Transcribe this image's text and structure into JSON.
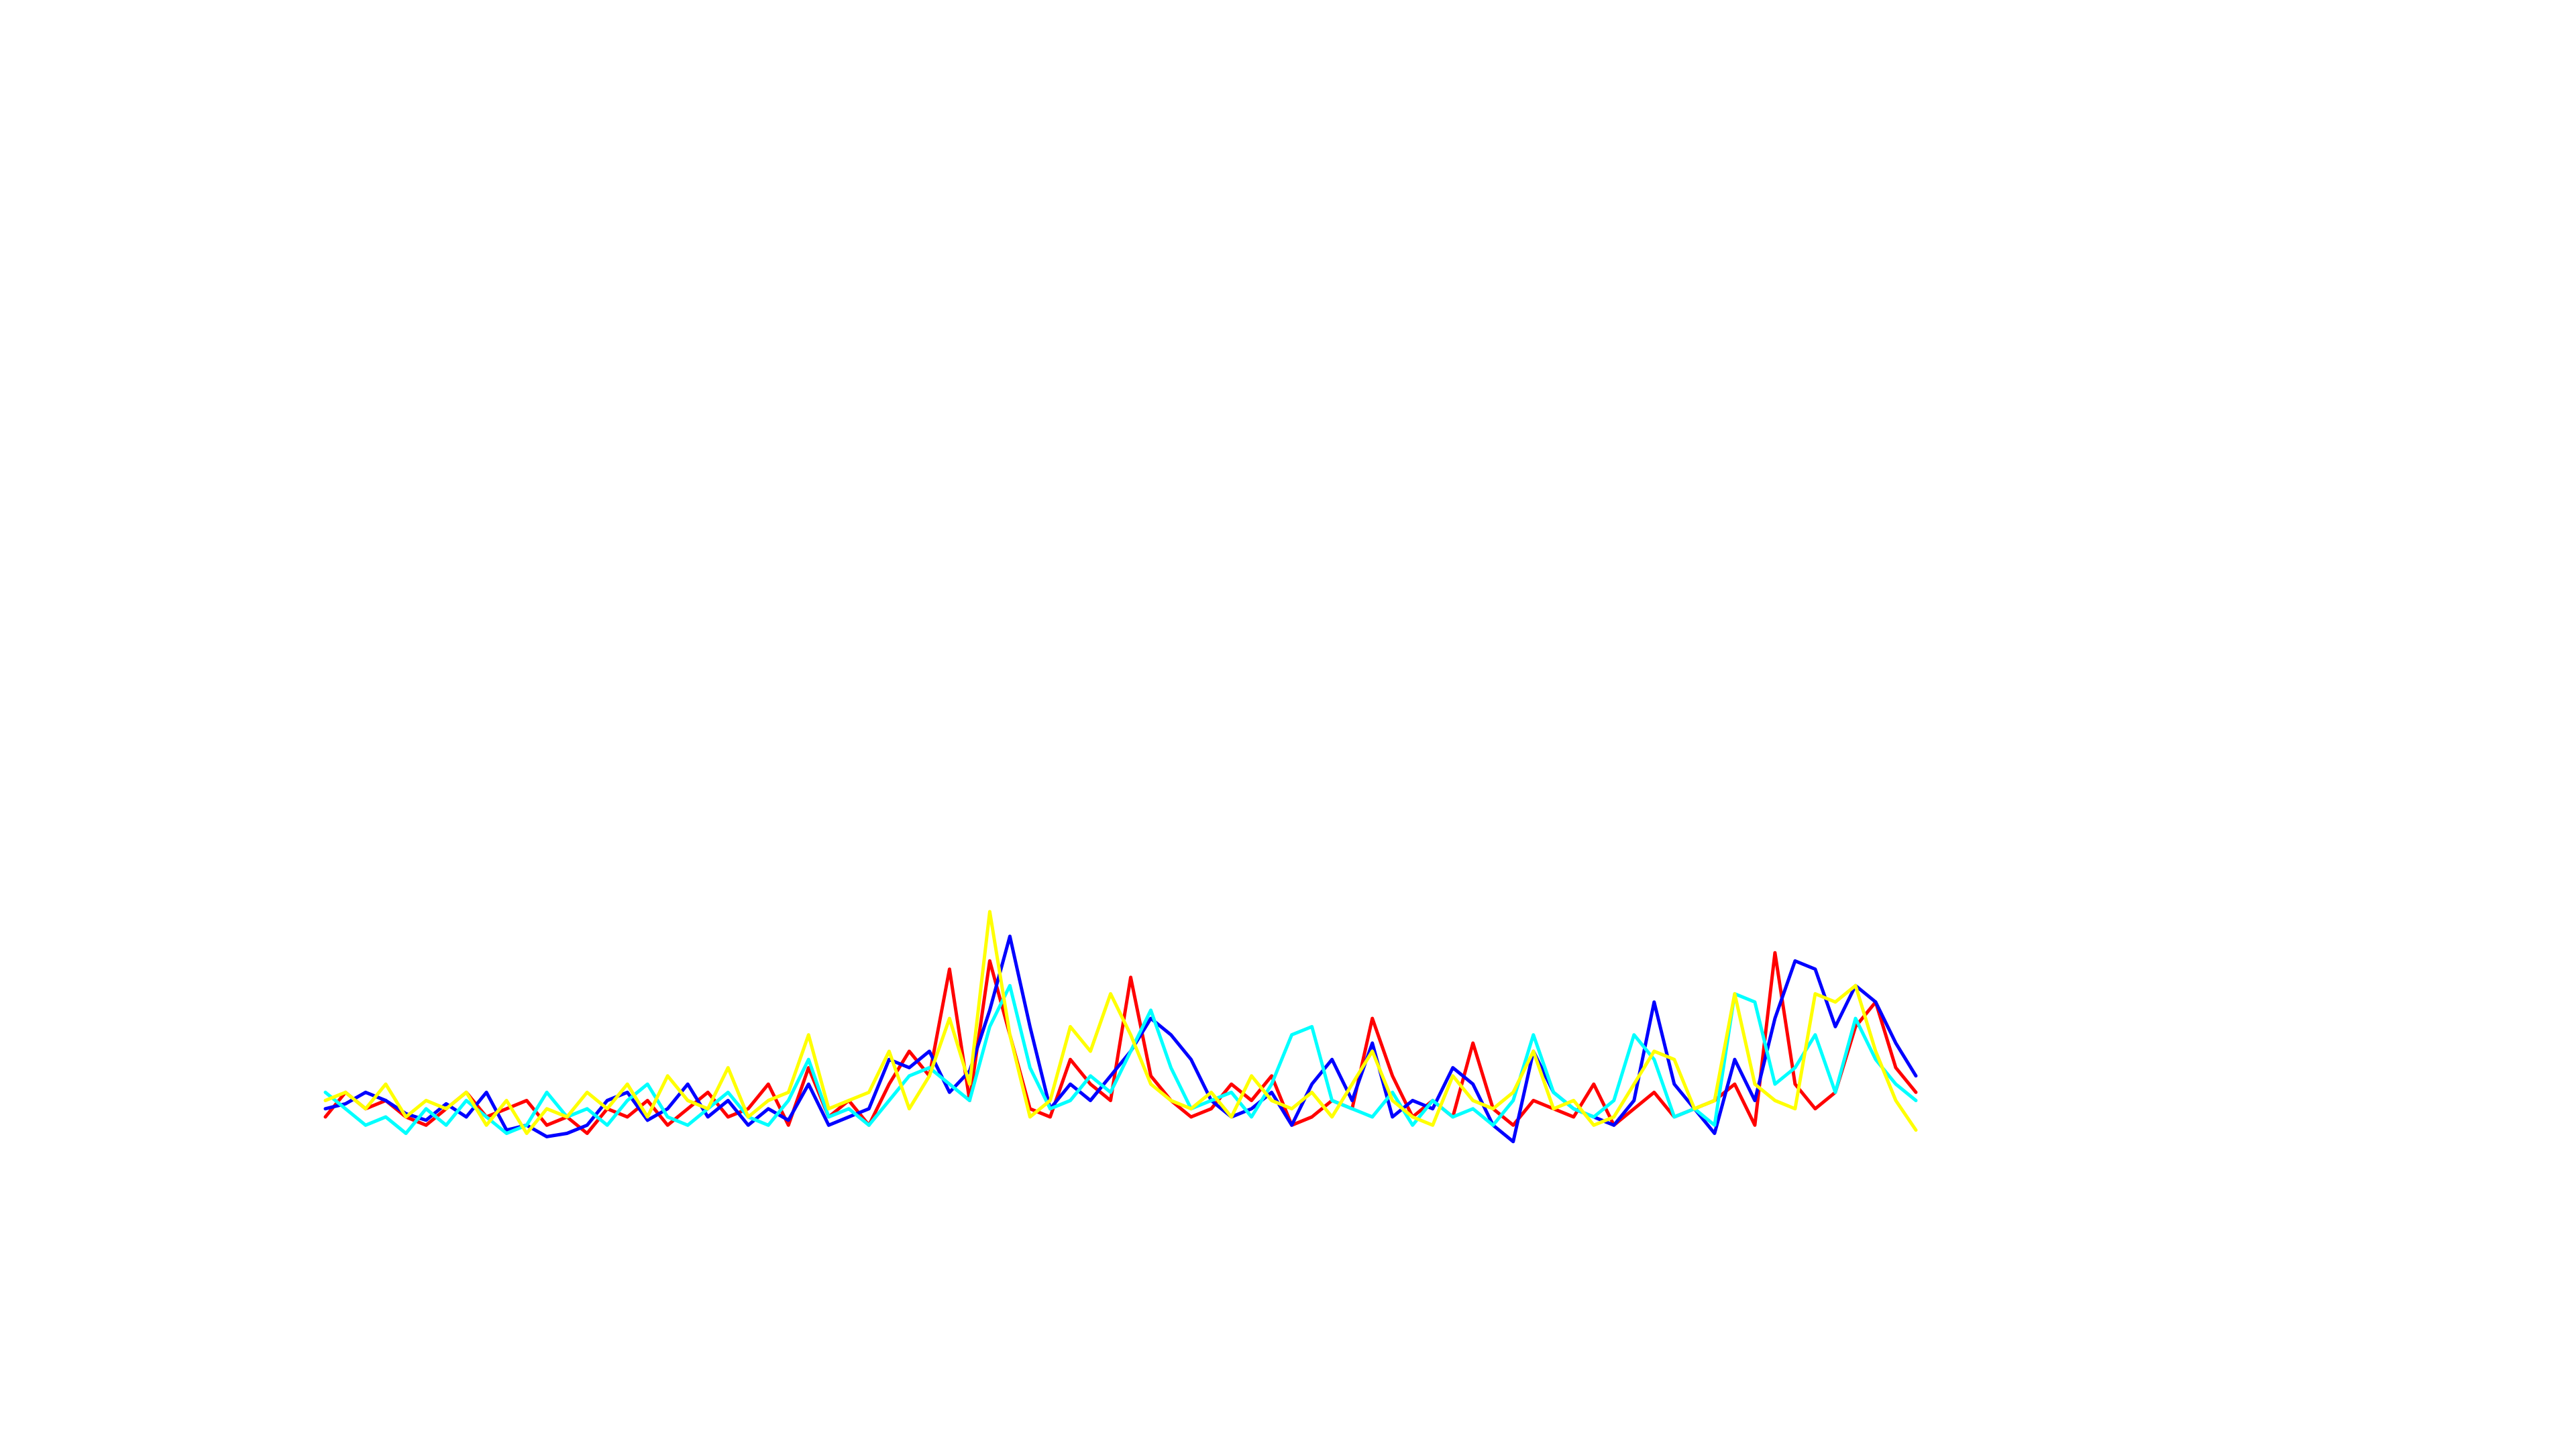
{
  "chart_data": {
    "type": "line",
    "ylim": [
      0,
      600
    ],
    "series": [
      {
        "color": "#ff0000",
        "values": [
          20,
          35,
          25,
          30,
          20,
          15,
          25,
          35,
          20,
          25,
          30,
          15,
          20,
          10,
          25,
          20,
          30,
          15,
          25,
          35,
          20,
          25,
          40,
          15,
          50,
          20,
          30,
          15,
          40,
          60,
          45,
          110,
          30,
          115,
          70,
          25,
          20,
          55,
          40,
          30,
          105,
          45,
          30,
          20,
          25,
          40,
          30,
          45,
          15,
          20,
          30,
          25,
          80,
          45,
          20,
          30,
          20,
          65,
          25,
          15,
          30,
          25,
          20,
          40,
          15,
          25,
          35,
          20,
          25,
          30,
          40,
          15,
          120,
          40,
          25,
          35,
          75,
          90,
          50,
          35
        ]
      },
      {
        "color": "#0000ff",
        "values": [
          25,
          28,
          35,
          30,
          22,
          18,
          28,
          20,
          35,
          12,
          15,
          8,
          10,
          15,
          30,
          35,
          18,
          25,
          40,
          20,
          30,
          15,
          25,
          18,
          40,
          15,
          20,
          25,
          55,
          50,
          60,
          35,
          48,
          85,
          130,
          75,
          25,
          40,
          30,
          45,
          60,
          80,
          70,
          55,
          30,
          20,
          25,
          35,
          15,
          40,
          55,
          30,
          65,
          20,
          30,
          25,
          50,
          40,
          15,
          5,
          60,
          35,
          25,
          20,
          15,
          30,
          90,
          40,
          25,
          10,
          55,
          30,
          80,
          115,
          110,
          75,
          100,
          90,
          65,
          45
        ]
      },
      {
        "color": "#00ffff",
        "values": [
          35,
          25,
          15,
          20,
          10,
          25,
          15,
          30,
          20,
          10,
          15,
          35,
          20,
          25,
          15,
          30,
          40,
          20,
          15,
          25,
          35,
          20,
          15,
          30,
          55,
          20,
          25,
          15,
          30,
          45,
          50,
          40,
          30,
          75,
          100,
          50,
          25,
          30,
          45,
          35,
          60,
          85,
          50,
          25,
          30,
          35,
          20,
          40,
          70,
          75,
          30,
          25,
          20,
          35,
          15,
          30,
          20,
          25,
          15,
          30,
          70,
          35,
          25,
          20,
          30,
          70,
          55,
          20,
          25,
          15,
          95,
          90,
          40,
          50,
          70,
          35,
          80,
          55,
          40,
          30
        ]
      },
      {
        "color": "#ffff00",
        "values": [
          30,
          35,
          25,
          40,
          20,
          30,
          25,
          35,
          15,
          30,
          10,
          25,
          20,
          35,
          25,
          40,
          20,
          45,
          30,
          25,
          50,
          20,
          30,
          35,
          70,
          25,
          30,
          35,
          60,
          25,
          45,
          80,
          40,
          145,
          70,
          20,
          30,
          75,
          60,
          95,
          70,
          40,
          30,
          25,
          35,
          20,
          45,
          30,
          25,
          35,
          20,
          40,
          60,
          30,
          20,
          15,
          45,
          30,
          25,
          35,
          60,
          25,
          30,
          15,
          20,
          40,
          60,
          55,
          25,
          30,
          95,
          40,
          30,
          25,
          95,
          90,
          100,
          60,
          30,
          12
        ]
      }
    ]
  }
}
